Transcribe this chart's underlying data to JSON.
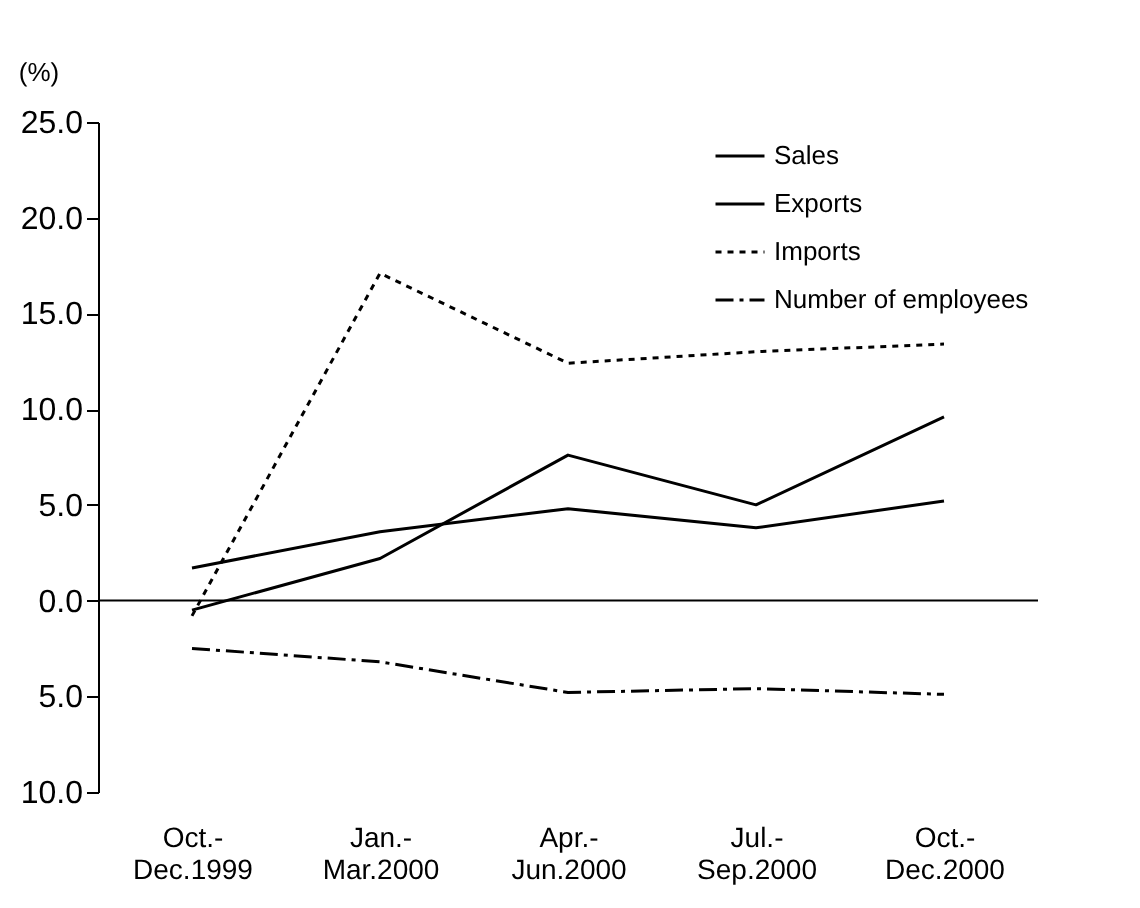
{
  "chart_data": {
    "type": "line",
    "ylabel": "(%)",
    "categories": [
      "Oct.- Dec.1999",
      "Jan.- Mar.2000",
      "Apr.- Jun.2000",
      "Jul.- Sep.2000",
      "Oct.- Dec.2000"
    ],
    "series": [
      {
        "name": "Sales",
        "color": "#000000",
        "line_style": "solid",
        "values": [
          1.7,
          3.6,
          4.8,
          3.8,
          5.2
        ]
      },
      {
        "name": "Exports",
        "color": "#000000",
        "line_style": "solid",
        "values": [
          -0.5,
          2.2,
          7.6,
          5.0,
          9.6
        ]
      },
      {
        "name": "Imports",
        "color": "#000000",
        "line_style": "dotted",
        "values": [
          -0.8,
          17.1,
          12.4,
          13.0,
          13.4
        ]
      },
      {
        "name": "Number of employees",
        "color": "#000000",
        "line_style": "dashed",
        "values": [
          -2.5,
          -3.2,
          -4.8,
          -4.6,
          -4.9
        ]
      }
    ],
    "ylim": [
      -10,
      25
    ],
    "yticks": [
      {
        "value": -10,
        "label": "10.0"
      },
      {
        "value": -5,
        "label": "5.0"
      },
      {
        "value": 0,
        "label": "0.0"
      },
      {
        "value": 5,
        "label": "5.0"
      },
      {
        "value": 10,
        "label": "10.0"
      },
      {
        "value": 15,
        "label": "15.0"
      },
      {
        "value": 20,
        "label": "20.0"
      },
      {
        "value": 25,
        "label": "25.0"
      }
    ],
    "ref_lines": [
      {
        "axis": "y",
        "value": 0
      }
    ],
    "grid": false,
    "legend": "top right"
  }
}
